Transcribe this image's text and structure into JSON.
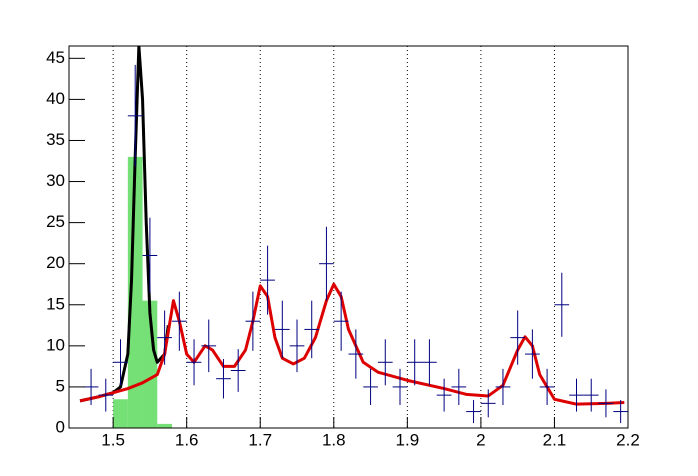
{
  "chart_data": {
    "type": "errorbar",
    "color": "#000080",
    "x": [
      1.47,
      1.49,
      1.51,
      1.53,
      1.55,
      1.57,
      1.59,
      1.61,
      1.63,
      1.65,
      1.67,
      1.69,
      1.71,
      1.73,
      1.75,
      1.77,
      1.79,
      1.81,
      1.83,
      1.85,
      1.87,
      1.89,
      1.91,
      1.93,
      1.95,
      1.97,
      1.99,
      2.01,
      2.03,
      2.05,
      2.07,
      2.09,
      2.11,
      2.13,
      2.15,
      2.17,
      2.19
    ],
    "values": [
      5,
      4,
      8,
      38,
      21,
      11,
      13,
      8,
      10,
      6,
      7,
      13,
      18,
      12,
      10,
      12,
      20,
      13,
      9,
      5,
      8,
      5,
      8,
      8,
      4,
      5,
      2,
      3,
      5,
      11,
      9,
      5,
      15,
      4,
      4,
      3,
      2
    ],
    "errors": [
      2.2,
      2,
      2.8,
      6.2,
      4.6,
      3.3,
      3.6,
      2.8,
      3.2,
      2.4,
      2.6,
      3.6,
      4.2,
      3.5,
      3.2,
      3.5,
      4.5,
      3.6,
      3,
      2.2,
      2.8,
      2.2,
      2.8,
      2.8,
      2,
      2.2,
      1.4,
      1.7,
      2.2,
      3.3,
      3,
      2.2,
      3.9,
      2,
      2,
      1.7,
      1.4
    ],
    "histogram": {
      "color": "#66dd66",
      "bins": [
        1.5,
        1.52,
        1.54,
        1.56,
        1.58
      ],
      "counts": [
        3.5,
        33,
        15.5,
        0.5
      ]
    },
    "curves": [
      {
        "color": "#000000",
        "x": [
          1.455,
          1.48,
          1.5,
          1.51,
          1.52,
          1.525,
          1.53,
          1.535,
          1.54,
          1.545,
          1.55,
          1.555,
          1.56,
          1.57,
          1.575
        ],
        "values": [
          3.3,
          3.8,
          4.3,
          5,
          9,
          18,
          33,
          46.5,
          40,
          25,
          14,
          9.5,
          8,
          9,
          12.5
        ]
      },
      {
        "color": "#dd0000",
        "x": [
          1.455,
          1.48,
          1.5,
          1.52,
          1.54,
          1.56,
          1.57,
          1.582,
          1.59,
          1.6,
          1.61,
          1.625,
          1.635,
          1.65,
          1.665,
          1.68,
          1.69,
          1.7,
          1.71,
          1.72,
          1.73,
          1.745,
          1.76,
          1.775,
          1.79,
          1.8,
          1.81,
          1.82,
          1.84,
          1.86,
          1.9,
          1.95,
          1.98,
          2.01,
          2.03,
          2.05,
          2.06,
          2.07,
          2.08,
          2.1,
          2.13,
          2.17,
          2.195
        ],
        "values": [
          3.3,
          3.8,
          4.3,
          4.8,
          5.5,
          6.5,
          9,
          15.5,
          13,
          9,
          8,
          10,
          9.5,
          7.5,
          7.5,
          9.5,
          13,
          17.3,
          16,
          11,
          8.5,
          7.8,
          8.5,
          11,
          15.5,
          17.5,
          16,
          12,
          8,
          6.8,
          5.8,
          4.8,
          4.1,
          3.9,
          5.2,
          9.5,
          11.1,
          10,
          6.5,
          3.5,
          2.9,
          3.0,
          3.1
        ]
      }
    ],
    "xlim": [
      1.44,
      2.2
    ],
    "ylim": [
      0,
      46.5
    ],
    "xticks": [
      1.5,
      1.6,
      1.7,
      1.8,
      1.9,
      2,
      2.1,
      2.2
    ],
    "yticks": [
      0,
      5,
      10,
      15,
      20,
      25,
      30,
      35,
      40,
      45
    ],
    "grid": "x"
  }
}
